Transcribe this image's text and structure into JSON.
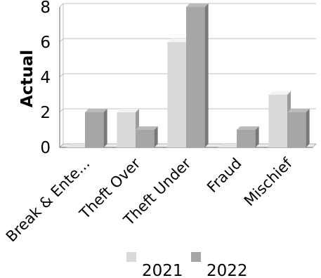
{
  "chart_data": {
    "type": "bar",
    "categories": [
      "Break & Ente...",
      "Theft Over",
      "Theft Under",
      "Fraud",
      "Mischief"
    ],
    "series": [
      {
        "name": "2021",
        "values": [
          0,
          2,
          6,
          0,
          3
        ],
        "color": "#d9d9d9"
      },
      {
        "name": "2022",
        "values": [
          2,
          1,
          8,
          1,
          2
        ],
        "color": "#a6a6a6"
      }
    ],
    "ylabel": "Actual",
    "xlabel": "",
    "ylim": [
      0,
      8
    ],
    "yticks": [
      0,
      2,
      4,
      6,
      8
    ],
    "grid": true,
    "legend_position": "bottom",
    "style": "3d-bars"
  }
}
